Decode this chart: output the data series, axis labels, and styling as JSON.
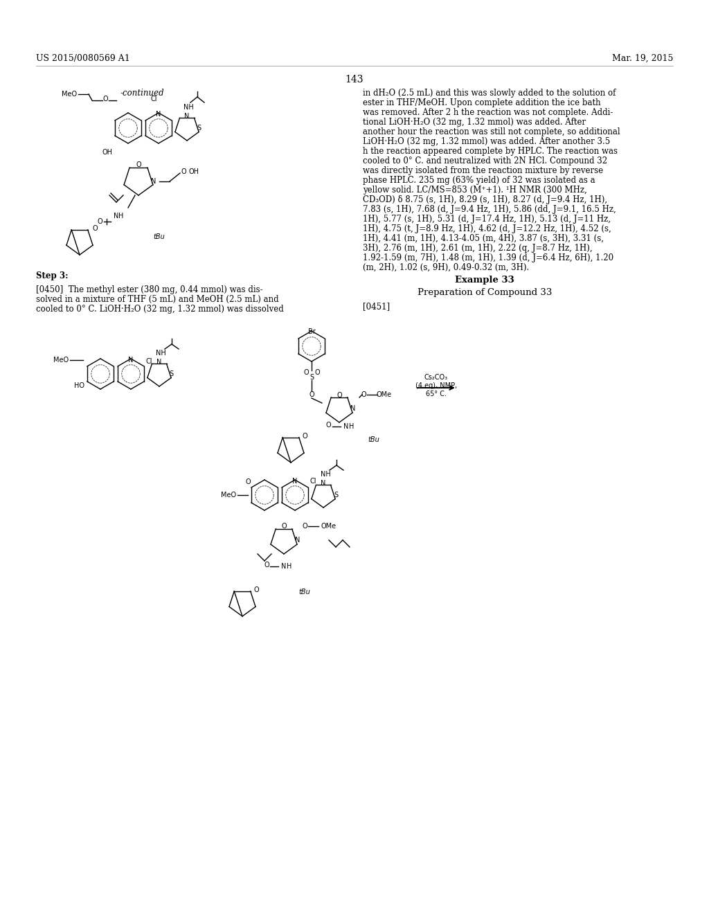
{
  "patent_number": "US 2015/0080569 A1",
  "date": "Mar. 19, 2015",
  "page_number": "143",
  "background_color": "#ffffff",
  "text_color": "#000000",
  "continued_label": "-continued",
  "step3_label": "Step 3:",
  "paragraph_0450": "[0450] The methyl ester (380 mg, 0.44 mmol) was dissolved in a mixture of THF (5 mL) and MeOH (2.5 mL) and cooled to 0° C. LiOH·H₂O (32 mg, 1.32 mmol) was dissolved",
  "paragraph_right": "in dH₂O (2.5 mL) and this was slowly added to the solution of ester in THF/MeOH. Upon complete addition the ice bath was removed. After 2 h the reaction was not complete. Additional LiOH·H₂O (32 mg, 1.32 mmol) was added. After another hour the reaction was still not complete, so additional LiOH·H₂O (32 mg, 1.32 mmol) was added. After another 3.5 h the reaction appeared complete by HPLC. The reaction was cooled to 0° C. and neutralized with 2N HCl. Compound 32 was directly isolated from the reaction mixture by reverse phase HPLC. 235 mg (63% yield) of 32 was isolated as a yellow solid. LC/MS=853 (M⁺+1). ¹H NMR (300 MHz, CD₃OD) δ 8.75 (s, 1H), 8.29 (s, 1H), 8.27 (d, J=9.4 Hz, 1H), 7.83 (s, 1H), 7.68 (d, J=9.4 Hz, 1H), 5.86 (dd, J=9.1, 16.5 Hz, 1H), 5.77 (s, 1H), 5.31 (d, J=17.4 Hz, 1H), 5.13 (d, J=11 Hz, 1H), 4.75 (t, J=8.9 Hz, 1H), 4.62 (d, J=12.2 Hz, 1H), 4.52 (s, 1H), 4.41 (m, 1H), 4.13-4.05 (m, 4H), 3.87 (s, 3H), 3.31 (s, 3H), 2.76 (m, 1H), 2.61 (m, 1H), 2.22 (q, J=8.7 Hz, 1H), 1.92-1.59 (m, 7H), 1.48 (m, 1H), 1.39 (d, J=6.4 Hz, 6H), 1.20 (m, 2H), 1.02 (s, 9H), 0.49-0.32 (m, 3H).",
  "example33_title": "Example 33",
  "example33_subtitle": "Preparation of Compound 33",
  "paragraph_0451": "[0451]",
  "reaction_conditions": "Cs₂CO₃\n(4 eq), NMP,\n65° C.",
  "font_size_header": 9,
  "font_size_body": 8.5,
  "font_size_page_num": 10
}
